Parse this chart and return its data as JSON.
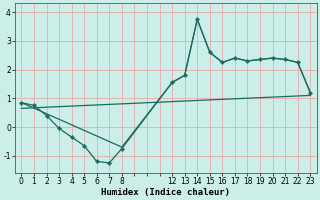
{
  "xlabel": "Humidex (Indice chaleur)",
  "bg_color": "#cceee8",
  "line_color": "#1a6b60",
  "grid_color": "#e8aaaa",
  "line1_x": [
    0,
    1,
    2,
    3,
    4,
    5,
    6,
    7,
    8,
    12,
    13,
    14,
    15,
    16,
    17,
    18,
    19,
    20,
    21,
    22,
    23
  ],
  "line1_y": [
    0.85,
    0.75,
    0.4,
    -0.05,
    -0.35,
    -0.65,
    -1.2,
    -1.25,
    -0.75,
    1.55,
    1.8,
    3.75,
    2.6,
    2.25,
    2.4,
    2.3,
    2.35,
    2.4,
    2.35,
    2.25,
    1.2
  ],
  "line2_x": [
    0,
    23
  ],
  "line2_y": [
    0.65,
    1.1
  ],
  "line3_x": [
    0,
    8,
    12,
    13,
    14,
    15,
    16,
    17,
    18,
    19,
    20,
    21,
    22,
    23
  ],
  "line3_y": [
    0.85,
    -0.7,
    1.55,
    1.8,
    3.75,
    2.6,
    2.25,
    2.4,
    2.3,
    2.35,
    2.4,
    2.35,
    2.25,
    1.2
  ],
  "xlim": [
    -0.5,
    23.5
  ],
  "ylim": [
    -1.6,
    4.3
  ],
  "yticks": [
    -1,
    0,
    1,
    2,
    3,
    4
  ],
  "xtick_positions": [
    0,
    1,
    2,
    3,
    4,
    5,
    6,
    7,
    8,
    9,
    10,
    11,
    12,
    13,
    14,
    15,
    16,
    17,
    18,
    19,
    20,
    21,
    22,
    23
  ],
  "xtick_labels": [
    "0",
    "1",
    "2",
    "3",
    "4",
    "5",
    "6",
    "7",
    "8",
    "",
    "",
    "",
    "12",
    "13",
    "14",
    "15",
    "16",
    "17",
    "18",
    "19",
    "20",
    "21",
    "22",
    "23"
  ]
}
